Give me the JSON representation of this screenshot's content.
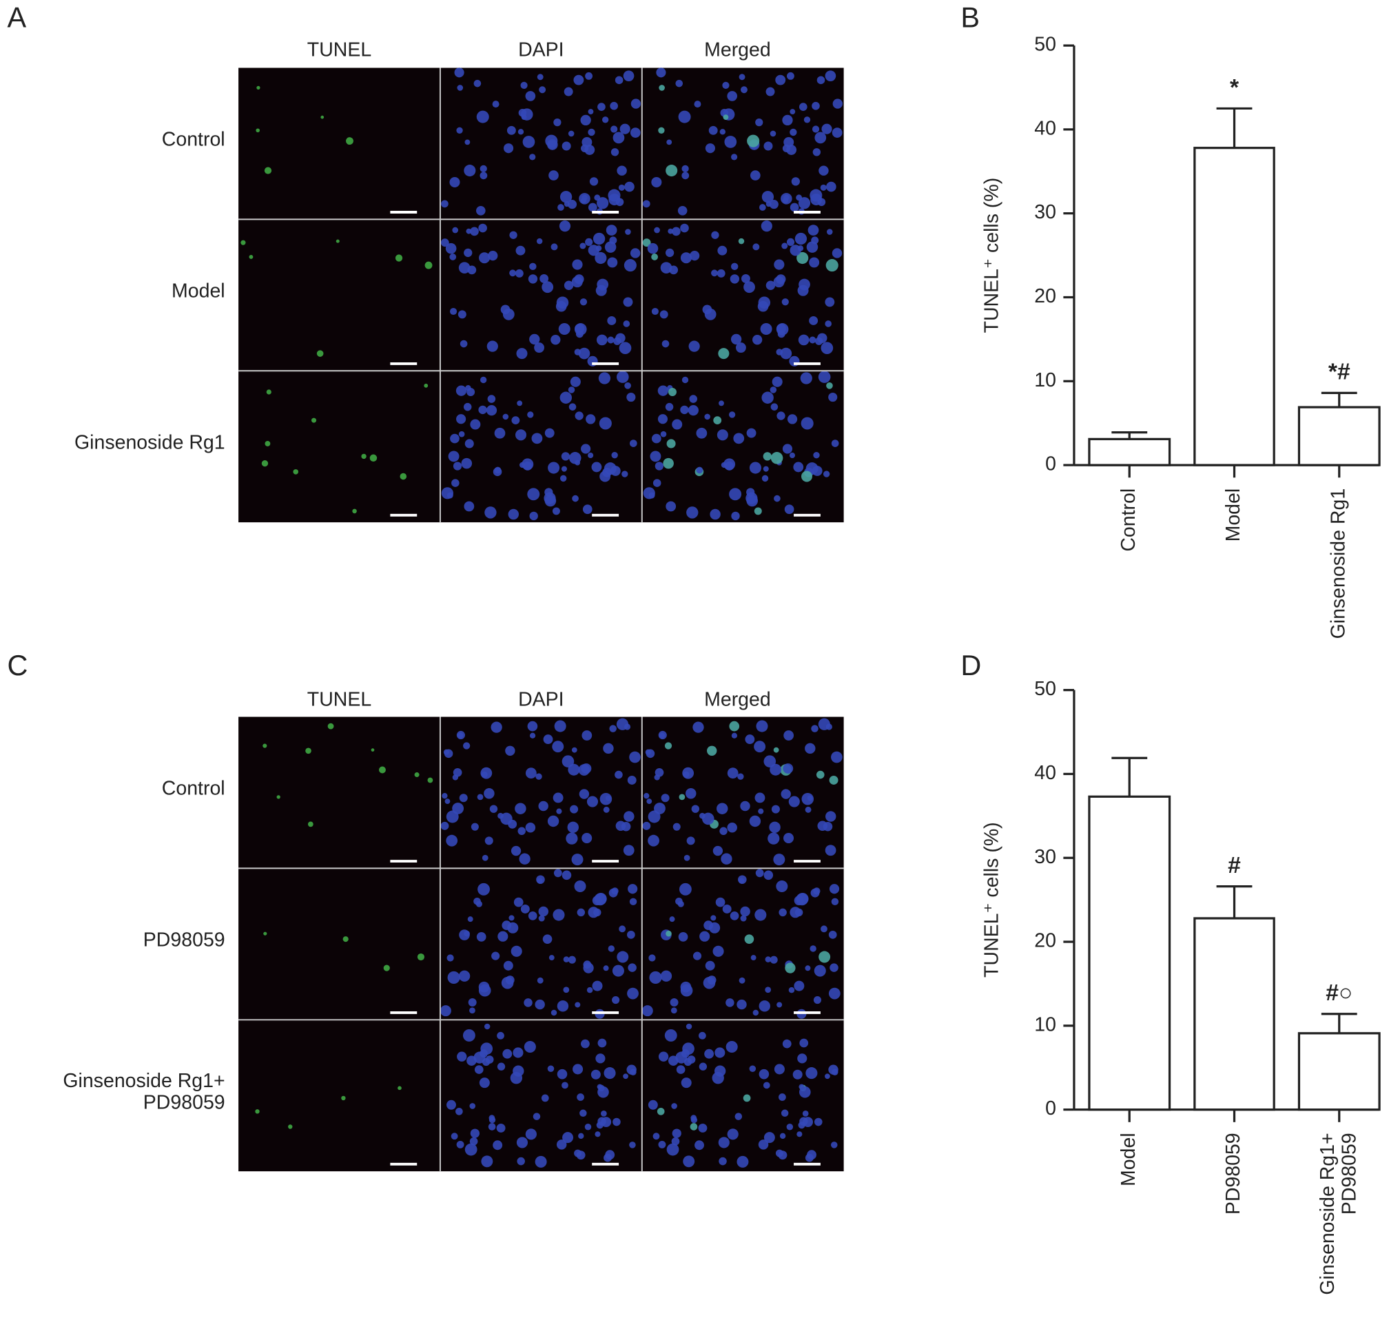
{
  "panels": [
    {
      "letter": "A",
      "columns": [
        "TUNEL",
        "DAPI",
        "Merged"
      ],
      "rows": [
        "Control",
        "Model",
        "Ginsenoside Rg1"
      ]
    },
    {
      "letter": "C",
      "columns": [
        "TUNEL",
        "DAPI",
        "Merged"
      ],
      "rows": [
        "Control",
        "PD98059",
        "Ginsenoside Rg1+\nPD98059"
      ]
    }
  ],
  "chart_data": [
    {
      "type": "bar",
      "letter": "B",
      "ylabel": "TUNEL⁺ cells (%)",
      "categories": [
        "Control",
        "Model",
        "Ginsenoside Rg1"
      ],
      "values": [
        3.1,
        37.8,
        6.9
      ],
      "errors": [
        0.8,
        4.7,
        1.7
      ],
      "annotations": [
        null,
        "*",
        "*#"
      ],
      "ylim": [
        0,
        50
      ],
      "yticks": [
        0,
        10,
        20,
        30,
        40,
        50
      ],
      "color": "#ffffff"
    },
    {
      "type": "bar",
      "letter": "D",
      "ylabel": "TUNEL⁺ cells (%)",
      "categories": [
        "Model",
        "PD98059",
        "Ginsenoside Rg1+\nPD98059"
      ],
      "values": [
        37.3,
        22.8,
        9.1
      ],
      "errors": [
        4.6,
        3.8,
        2.3
      ],
      "annotations": [
        null,
        "#",
        "#○"
      ],
      "ylim": [
        0,
        50
      ],
      "yticks": [
        0,
        10,
        20,
        30,
        40,
        50
      ],
      "color": "#ffffff"
    }
  ]
}
